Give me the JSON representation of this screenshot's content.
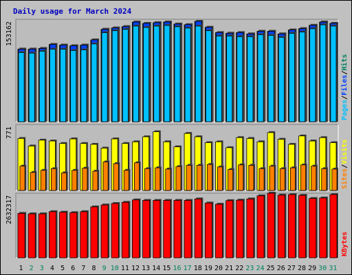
{
  "title": "Daily usage for March 2024",
  "colors": {
    "background": "#c0c0c0",
    "plot": "#bcbcbc",
    "title": "#0000c0",
    "hits": "#00805c",
    "files": "#0040ff",
    "pages": "#00c0ff",
    "visits": "#ffff00",
    "sites": "#ff8000",
    "kbytes": "#ff0000",
    "weekend_label": "#00805c"
  },
  "chart_data": [
    {
      "type": "bar",
      "name": "hits-files-pages",
      "ymax_label": "153162",
      "legend": [
        {
          "text": "Pages",
          "color": "#00c0ff"
        },
        {
          "text": "/",
          "color": "#000000"
        },
        {
          "text": "Files",
          "color": "#0040ff"
        },
        {
          "text": "/",
          "color": "#000000"
        },
        {
          "text": "Hits",
          "color": "#00805c"
        }
      ],
      "series": [
        {
          "key": "hits",
          "values": [
            110000,
            110000,
            111000,
            117000,
            116000,
            115000,
            116000,
            124000,
            140000,
            142000,
            144000,
            151000,
            149000,
            150000,
            151000,
            148000,
            147000,
            152000,
            143000,
            135000,
            134000,
            135000,
            133000,
            137000,
            137000,
            133000,
            139000,
            141000,
            146000,
            151000,
            149000
          ]
        },
        {
          "key": "files",
          "values": [
            110000,
            110000,
            111000,
            117000,
            116000,
            115000,
            116000,
            124000,
            140000,
            142000,
            144000,
            151000,
            149000,
            150000,
            151000,
            148000,
            147000,
            152000,
            143000,
            135000,
            134000,
            135000,
            133000,
            137000,
            137000,
            133000,
            139000,
            141000,
            146000,
            151000,
            149000
          ]
        },
        {
          "key": "pages",
          "values": [
            108000,
            107000,
            110000,
            113000,
            113000,
            111000,
            112000,
            121000,
            138000,
            141000,
            143000,
            148000,
            146000,
            148000,
            149000,
            147000,
            145000,
            148000,
            141000,
            133000,
            133000,
            132000,
            132000,
            135000,
            134000,
            131000,
            137000,
            139000,
            144000,
            150000,
            148000
          ]
        }
      ]
    },
    {
      "type": "bar",
      "name": "visits-sites",
      "ymax_label": "771",
      "legend": [
        {
          "text": "Sites",
          "color": "#ff8000"
        },
        {
          "text": "/",
          "color": "#000000"
        },
        {
          "text": "Visits",
          "color": "#ffff00"
        }
      ],
      "series": [
        {
          "key": "visits",
          "values": [
            620,
            530,
            600,
            590,
            560,
            615,
            560,
            550,
            505,
            615,
            560,
            580,
            640,
            700,
            580,
            520,
            680,
            640,
            570,
            580,
            510,
            630,
            620,
            580,
            690,
            610,
            550,
            650,
            590,
            630,
            570
          ]
        },
        {
          "key": "sites",
          "values": [
            290,
            215,
            240,
            260,
            210,
            240,
            265,
            230,
            340,
            320,
            240,
            330,
            260,
            270,
            255,
            285,
            300,
            300,
            310,
            280,
            250,
            305,
            300,
            260,
            290,
            260,
            270,
            305,
            290,
            260,
            255
          ]
        }
      ]
    },
    {
      "type": "bar",
      "name": "kbytes",
      "ymax_label": "2632317",
      "legend": [
        {
          "text": "KBytes",
          "color": "#ff0000"
        }
      ],
      "series": [
        {
          "key": "kbytes",
          "values": [
            1850000,
            1830000,
            1830000,
            1920000,
            1900000,
            1880000,
            1920000,
            2120000,
            2200000,
            2260000,
            2310000,
            2410000,
            2390000,
            2390000,
            2390000,
            2390000,
            2390000,
            2450000,
            2280000,
            2230000,
            2380000,
            2400000,
            2450000,
            2580000,
            2690000,
            2610000,
            2630000,
            2600000,
            2470000,
            2490000,
            2632317
          ]
        }
      ]
    }
  ],
  "x_labels": [
    {
      "text": "1",
      "weekend": false
    },
    {
      "text": "2",
      "weekend": true
    },
    {
      "text": "3",
      "weekend": true
    },
    {
      "text": "4",
      "weekend": false
    },
    {
      "text": "5",
      "weekend": false
    },
    {
      "text": "6",
      "weekend": false
    },
    {
      "text": "7",
      "weekend": false
    },
    {
      "text": "8",
      "weekend": false
    },
    {
      "text": "9",
      "weekend": true
    },
    {
      "text": "10",
      "weekend": true
    },
    {
      "text": "11",
      "weekend": false
    },
    {
      "text": "12",
      "weekend": false
    },
    {
      "text": "13",
      "weekend": false
    },
    {
      "text": "14",
      "weekend": false
    },
    {
      "text": "15",
      "weekend": false
    },
    {
      "text": "16",
      "weekend": true
    },
    {
      "text": "17",
      "weekend": true
    },
    {
      "text": "18",
      "weekend": false
    },
    {
      "text": "19",
      "weekend": false
    },
    {
      "text": "20",
      "weekend": false
    },
    {
      "text": "21",
      "weekend": false
    },
    {
      "text": "22",
      "weekend": false
    },
    {
      "text": "23",
      "weekend": true
    },
    {
      "text": "24",
      "weekend": true
    },
    {
      "text": "25",
      "weekend": false
    },
    {
      "text": "26",
      "weekend": false
    },
    {
      "text": "27",
      "weekend": false
    },
    {
      "text": "28",
      "weekend": false
    },
    {
      "text": "29",
      "weekend": false
    },
    {
      "text": "30",
      "weekend": true
    },
    {
      "text": "31",
      "weekend": true
    }
  ]
}
